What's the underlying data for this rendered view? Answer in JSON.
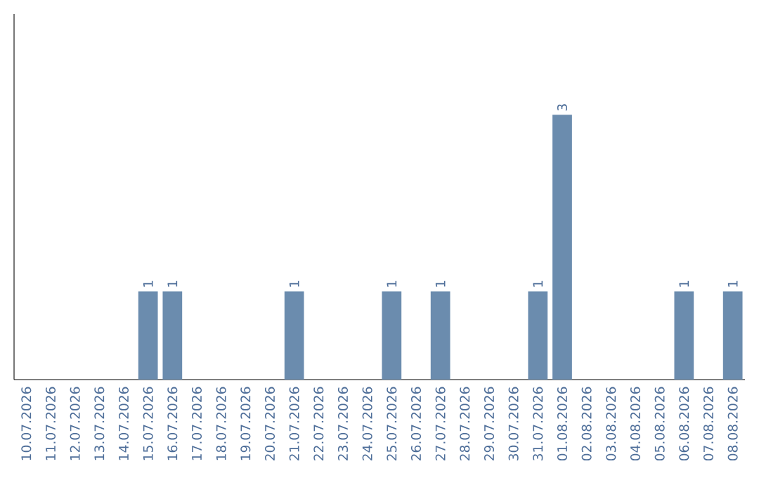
{
  "chart_data": {
    "type": "bar",
    "color": "#6b8cae",
    "categories": [
      "10.07.2026",
      "11.07.2026",
      "12.07.2026",
      "13.07.2026",
      "14.07.2026",
      "15.07.2026",
      "16.07.2026",
      "17.07.2026",
      "18.07.2026",
      "19.07.2026",
      "20.07.2026",
      "21.07.2026",
      "22.07.2026",
      "23.07.2026",
      "24.07.2026",
      "25.07.2026",
      "26.07.2026",
      "27.07.2026",
      "28.07.2026",
      "29.07.2026",
      "30.07.2026",
      "31.07.2026",
      "01.08.2026",
      "02.08.2026",
      "03.08.2026",
      "04.08.2026",
      "05.08.2026",
      "06.08.2026",
      "07.08.2026",
      "08.08.2026"
    ],
    "values": [
      0,
      0,
      0,
      0,
      0,
      1,
      1,
      0,
      0,
      0,
      0,
      1,
      0,
      0,
      0,
      1,
      0,
      1,
      0,
      0,
      0,
      1,
      3,
      0,
      0,
      0,
      0,
      1,
      0,
      1
    ],
    "value_labels": [
      null,
      null,
      null,
      null,
      null,
      "1",
      "1",
      null,
      null,
      null,
      null,
      "1",
      null,
      null,
      null,
      "1",
      null,
      "1",
      null,
      null,
      null,
      "1",
      "3",
      null,
      null,
      null,
      null,
      "1",
      null,
      "1"
    ],
    "tick_labels": "x",
    "grid": false
  }
}
